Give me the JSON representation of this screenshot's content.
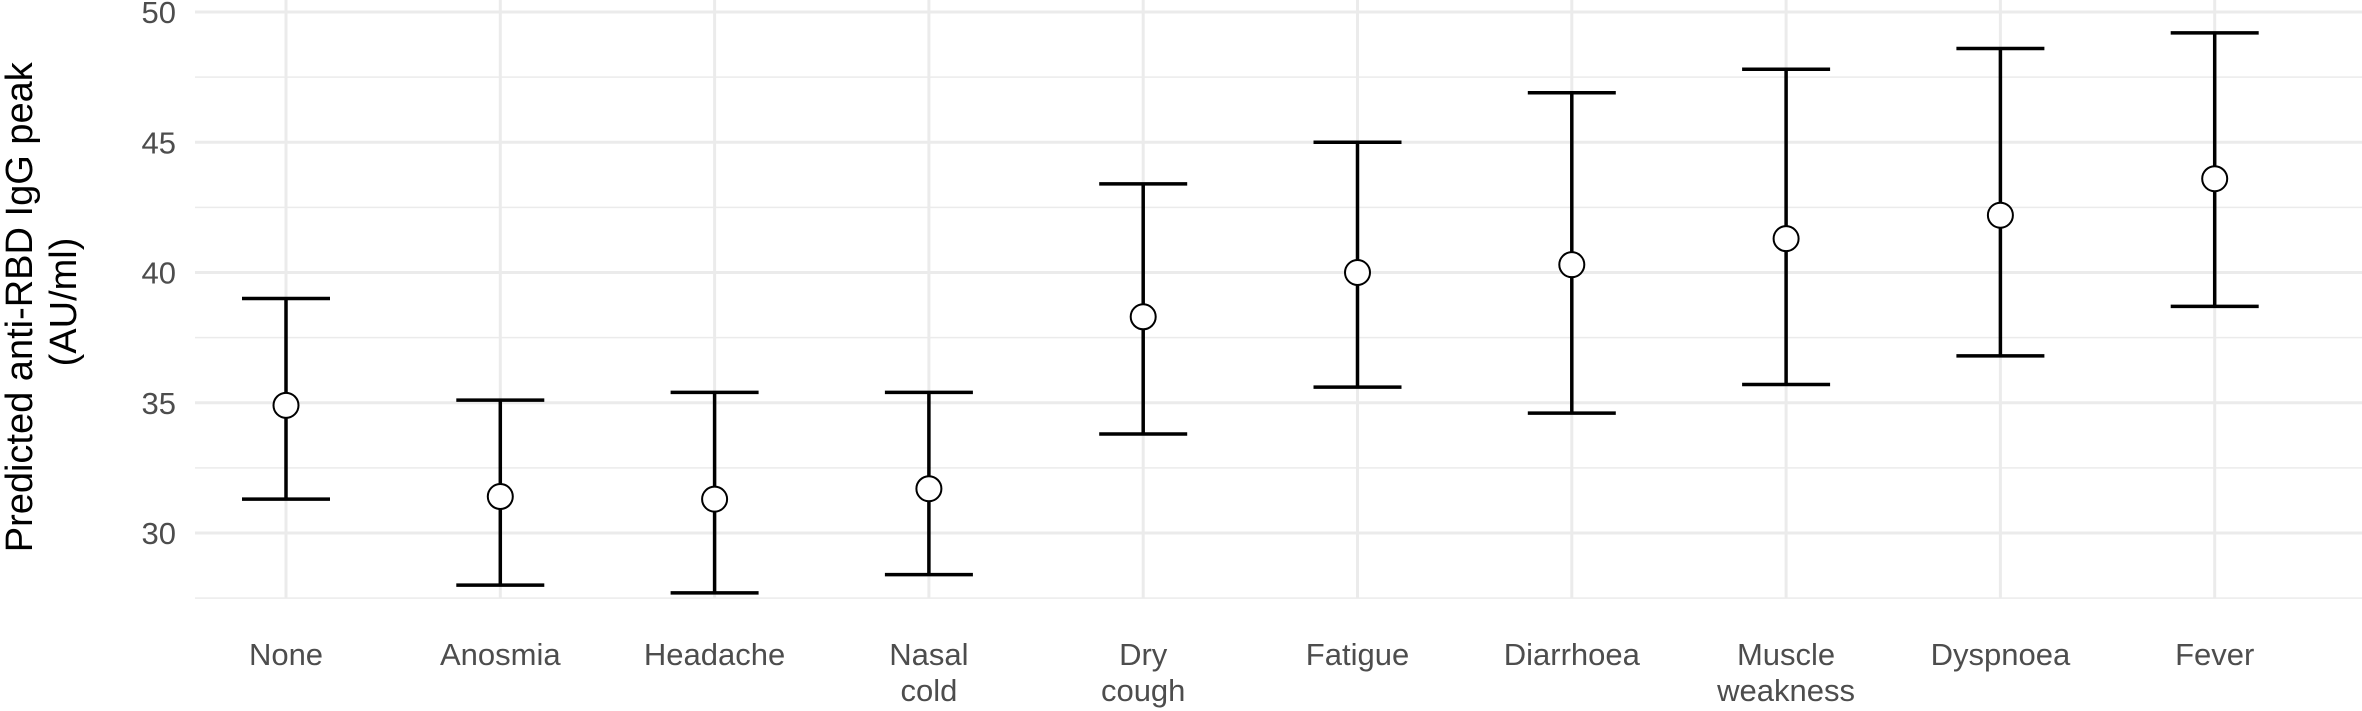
{
  "chart_data": {
    "type": "errorbar",
    "title": "",
    "xlabel": "",
    "ylabel_lines": [
      "Predicted anti-RBD IgG peak",
      "(AU/ml)"
    ],
    "ylim": [
      26.2,
      50
    ],
    "y_ticks": [
      30,
      35,
      40,
      45,
      50
    ],
    "y_tick_labels": [
      "30",
      "35",
      "40",
      "45",
      "50"
    ],
    "grid": true,
    "legend": "none",
    "categories": [
      [
        "None"
      ],
      [
        "Anosmia"
      ],
      [
        "Headache"
      ],
      [
        "Nasal",
        "cold"
      ],
      [
        "Dry",
        "cough"
      ],
      [
        "Fatigue"
      ],
      [
        "Diarrhoea"
      ],
      [
        "Muscle",
        "weakness"
      ],
      [
        "Dyspnoea"
      ],
      [
        "Fever"
      ]
    ],
    "estimate": [
      34.9,
      31.4,
      31.3,
      31.7,
      38.3,
      40.0,
      40.3,
      41.3,
      42.2,
      43.6
    ],
    "lower": [
      31.3,
      28.0,
      27.7,
      28.4,
      33.8,
      35.6,
      34.6,
      35.7,
      36.8,
      38.7
    ],
    "upper": [
      39.0,
      35.1,
      35.4,
      35.4,
      43.4,
      45.0,
      46.9,
      47.8,
      48.6,
      49.2
    ],
    "colors": {
      "grid": "#ebebeb",
      "bar": "#000000",
      "point_fill": "#ffffff",
      "point_stroke": "#000000"
    }
  }
}
